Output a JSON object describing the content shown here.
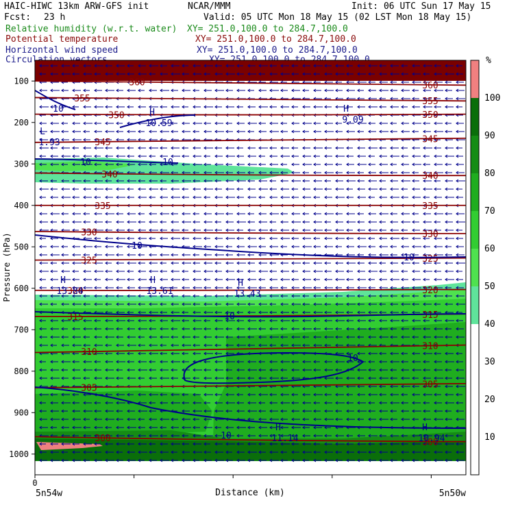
{
  "header": {
    "model": "HAIC-HIWC 13km ARW-GFS init",
    "org": "NCAR/MMM",
    "init": "Init: 06 UTC Sun 17 May 15",
    "fcst_label": "Fcst:",
    "fcst_value": "23 h",
    "valid": "Valid: 05 UTC Mon 18 May 15 (02 LST Mon 18 May 15)"
  },
  "fields": [
    {
      "name": "Relative humidity (w.r.t. water)",
      "xy": "XY= 251.0,100.0 to 284.7,100.0",
      "color": "#1a8a1a"
    },
    {
      "name": "Potential temperature",
      "xy": "XY= 251.0,100.0 to 284.7,100.0",
      "color": "#8a0a0a"
    },
    {
      "name": "Horizontal wind speed",
      "xy": "XY= 251.0,100.0 to 284.7,100.0",
      "color": "#1a1a8a"
    },
    {
      "name": "Circulation vectors",
      "xy": "XY= 251.0,100.0 to 284.7,100.0",
      "color": "#1a1a8a"
    }
  ],
  "axes": {
    "ylabel": "Pressure (hPa)",
    "xlabel": "Distance (km)",
    "yticks": [
      "100",
      "200",
      "300",
      "400",
      "500",
      "600",
      "700",
      "800",
      "900",
      "1000"
    ],
    "x_zero": "0",
    "x_left": "5n54w",
    "x_right": "5n50w"
  },
  "colorbar": {
    "unit": "%",
    "levels": [
      "10",
      "20",
      "30",
      "40",
      "50",
      "60",
      "70",
      "80",
      "90",
      "100"
    ]
  },
  "colors": {
    "theta": "#8b0000",
    "wind": "#00008b",
    "rh_50": "#5fe49b",
    "rh_60": "#4fe24f",
    "rh_70": "#32cd32",
    "rh_80": "#1fad1f",
    "rh_90": "#158c15",
    "rh_100": "#0a6e0a",
    "rh_low": "#f08080"
  },
  "chart_data": {
    "type": "cross-section",
    "y_range_hpa": [
      50,
      1050
    ],
    "y_axis": "pressure (inverted)",
    "isentropes": [
      {
        "value": 360,
        "label": "360",
        "p": [
          100,
          105,
          110
        ]
      },
      {
        "value": 355,
        "label": "355",
        "p": [
          140,
          145,
          148
        ]
      },
      {
        "value": 350,
        "label": "350",
        "p": [
          180,
          183,
          180
        ]
      },
      {
        "value": 345,
        "label": "345",
        "p": [
          248,
          245,
          238
        ]
      },
      {
        "value": 340,
        "label": "340",
        "p": [
          322,
          328,
          328
        ]
      },
      {
        "value": 335,
        "label": "335",
        "p": [
          400,
          400,
          400
        ]
      },
      {
        "value": 330,
        "label": "330",
        "p": [
          463,
          468,
          468
        ]
      },
      {
        "value": 325,
        "label": "325",
        "p": [
          532,
          530,
          527
        ]
      },
      {
        "value": 320,
        "label": "320",
        "p": [
          605,
          606,
          603
        ]
      },
      {
        "value": 315,
        "label": "315",
        "p": [
          668,
          668,
          662
        ]
      },
      {
        "value": 310,
        "label": "310",
        "p": [
          755,
          745,
          737
        ]
      },
      {
        "value": 305,
        "label": "305",
        "p": [
          840,
          837,
          830
        ]
      },
      {
        "value": 300,
        "label": "300",
        "p": [
          958,
          968,
          970
        ]
      }
    ],
    "wind_speed_labels": [
      "10",
      "10",
      "10",
      "10",
      "10",
      "10",
      "10",
      "10"
    ],
    "wind_maxima": [
      {
        "label": "H",
        "value": "10.59"
      },
      {
        "label": "H",
        "value": "9.09"
      },
      {
        "label": "L",
        "value": "1.93"
      },
      {
        "label": "H",
        "value": "13.84"
      },
      {
        "label": "H",
        "value": "13.61"
      },
      {
        "label": "H",
        "value": "13.43"
      },
      {
        "label": "H",
        "value": "11.14"
      },
      {
        "label": "H",
        "value": "10.94"
      }
    ],
    "rh_colorbar_percent": [
      10,
      20,
      30,
      40,
      50,
      60,
      70,
      80,
      90,
      100
    ]
  }
}
